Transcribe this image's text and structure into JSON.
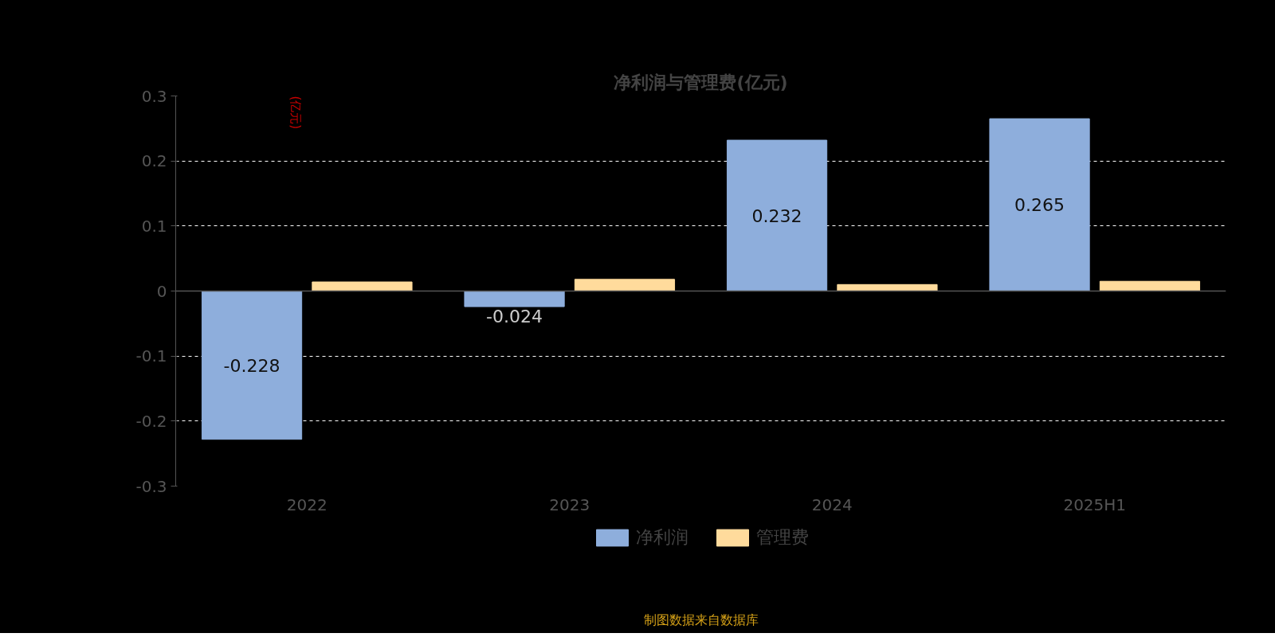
{
  "chart_data": {
    "type": "bar",
    "title": "净利润与管理费(亿元)",
    "ylabel": "(亿元)",
    "categories": [
      "2022",
      "2023",
      "2024",
      "2025H1"
    ],
    "series": [
      {
        "name": "净利润",
        "color": "#8eaedc",
        "values": [
          -0.228,
          -0.024,
          0.232,
          0.265
        ],
        "value_labels": [
          "-0.228",
          "-0.024",
          "0.232",
          "0.265"
        ]
      },
      {
        "name": "管理费",
        "color": "#ffdb9c",
        "values": [
          0.014,
          0.018,
          0.01,
          0.015
        ]
      }
    ],
    "ylim": [
      -0.3,
      0.3
    ],
    "yticks": [
      -0.3,
      -0.2,
      -0.1,
      0,
      0.1,
      0.2,
      0.3
    ],
    "grid": "y",
    "legend": "bottom",
    "annotations": [
      "制图数据来自数据库"
    ]
  }
}
